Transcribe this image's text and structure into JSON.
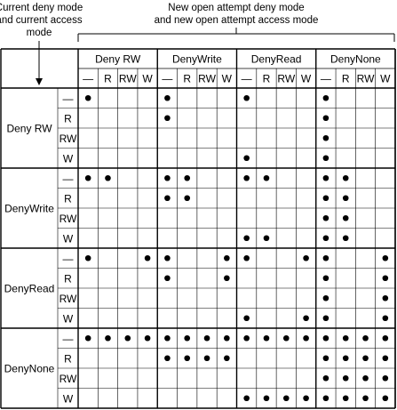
{
  "left_caption": {
    "line1": "Current deny mode",
    "line2": "and current access",
    "line3": "mode"
  },
  "top_caption": {
    "line1": "New open attempt deny mode",
    "line2": "and new open attempt access mode"
  },
  "deny_modes": [
    "Deny RW",
    "DenyWrite",
    "DenyRead",
    "DenyNone"
  ],
  "access_modes": [
    "—",
    "R",
    "RW",
    "W"
  ],
  "matrix": {
    "Deny RW": {
      "—": [
        [
          1,
          0,
          0,
          0
        ],
        [
          1,
          0,
          0,
          0
        ],
        [
          1,
          0,
          0,
          0
        ],
        [
          1,
          0,
          0,
          0
        ]
      ],
      "R": [
        [
          0,
          0,
          0,
          0
        ],
        [
          1,
          0,
          0,
          0
        ],
        [
          0,
          0,
          0,
          0
        ],
        [
          1,
          0,
          0,
          0
        ]
      ],
      "RW": [
        [
          0,
          0,
          0,
          0
        ],
        [
          0,
          0,
          0,
          0
        ],
        [
          0,
          0,
          0,
          0
        ],
        [
          1,
          0,
          0,
          0
        ]
      ],
      "W": [
        [
          0,
          0,
          0,
          0
        ],
        [
          0,
          0,
          0,
          0
        ],
        [
          1,
          0,
          0,
          0
        ],
        [
          1,
          0,
          0,
          0
        ]
      ]
    },
    "DenyWrite": {
      "—": [
        [
          1,
          1,
          0,
          0
        ],
        [
          1,
          1,
          0,
          0
        ],
        [
          1,
          1,
          0,
          0
        ],
        [
          1,
          1,
          0,
          0
        ]
      ],
      "R": [
        [
          0,
          0,
          0,
          0
        ],
        [
          1,
          1,
          0,
          0
        ],
        [
          0,
          0,
          0,
          0
        ],
        [
          1,
          1,
          0,
          0
        ]
      ],
      "RW": [
        [
          0,
          0,
          0,
          0
        ],
        [
          0,
          0,
          0,
          0
        ],
        [
          0,
          0,
          0,
          0
        ],
        [
          1,
          1,
          0,
          0
        ]
      ],
      "W": [
        [
          0,
          0,
          0,
          0
        ],
        [
          0,
          0,
          0,
          0
        ],
        [
          1,
          1,
          0,
          0
        ],
        [
          1,
          1,
          0,
          0
        ]
      ]
    },
    "DenyRead": {
      "—": [
        [
          1,
          0,
          0,
          1
        ],
        [
          1,
          0,
          0,
          1
        ],
        [
          1,
          0,
          0,
          1
        ],
        [
          1,
          0,
          0,
          1
        ]
      ],
      "R": [
        [
          0,
          0,
          0,
          0
        ],
        [
          1,
          0,
          0,
          1
        ],
        [
          0,
          0,
          0,
          0
        ],
        [
          1,
          0,
          0,
          1
        ]
      ],
      "RW": [
        [
          0,
          0,
          0,
          0
        ],
        [
          0,
          0,
          0,
          0
        ],
        [
          0,
          0,
          0,
          0
        ],
        [
          1,
          0,
          0,
          1
        ]
      ],
      "W": [
        [
          0,
          0,
          0,
          0
        ],
        [
          0,
          0,
          0,
          0
        ],
        [
          1,
          0,
          0,
          1
        ],
        [
          1,
          0,
          0,
          1
        ]
      ]
    },
    "DenyNone": {
      "—": [
        [
          1,
          1,
          1,
          1
        ],
        [
          1,
          1,
          1,
          1
        ],
        [
          1,
          1,
          1,
          1
        ],
        [
          1,
          1,
          1,
          1
        ]
      ],
      "R": [
        [
          0,
          0,
          0,
          0
        ],
        [
          1,
          1,
          1,
          1
        ],
        [
          0,
          0,
          0,
          0
        ],
        [
          1,
          1,
          1,
          1
        ]
      ],
      "RW": [
        [
          0,
          0,
          0,
          0
        ],
        [
          0,
          0,
          0,
          0
        ],
        [
          0,
          0,
          0,
          0
        ],
        [
          1,
          1,
          1,
          1
        ]
      ],
      "W": [
        [
          0,
          0,
          0,
          0
        ],
        [
          0,
          0,
          0,
          0
        ],
        [
          1,
          1,
          1,
          1
        ],
        [
          1,
          1,
          1,
          1
        ]
      ]
    }
  }
}
